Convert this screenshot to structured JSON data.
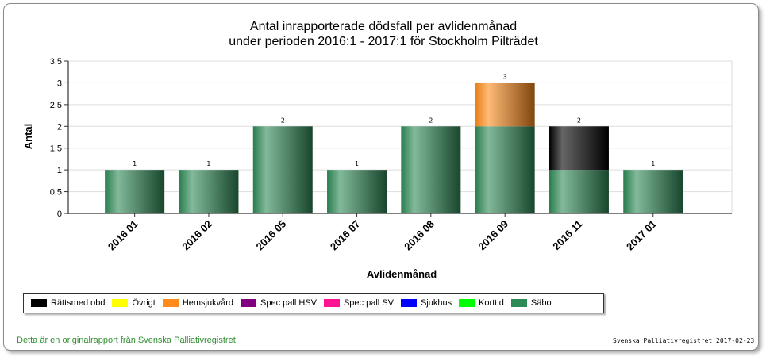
{
  "chart_data": {
    "type": "bar",
    "stacked": true,
    "title": [
      "Antal inrapporterade dödsfall per avlidenmånad",
      "under perioden 2016:1 - 2017:1 för Stockholm Pilträdet"
    ],
    "xlabel": "Avlidenmånad",
    "ylabel": "Antal",
    "ylim": [
      0,
      3.5
    ],
    "yticks": [
      "0",
      "0,5",
      "1",
      "1,5",
      "2",
      "2,5",
      "3",
      "3,5"
    ],
    "categories": [
      "2016 01",
      "2016 02",
      "2016 05",
      "2016 07",
      "2016 08",
      "2016 09",
      "2016 11",
      "2017 01"
    ],
    "totals": [
      "1",
      "1",
      "2",
      "1",
      "2",
      "3",
      "2",
      "1"
    ],
    "grid": true,
    "legend_position": "bottom",
    "series": [
      {
        "name": "Rättsmed obd",
        "color": "#000000",
        "values": [
          0,
          0,
          0,
          0,
          0,
          0,
          1,
          0
        ]
      },
      {
        "name": "Övrigt",
        "color": "#ffff00",
        "values": [
          0,
          0,
          0,
          0,
          0,
          0,
          0,
          0
        ]
      },
      {
        "name": "Hemsjukvård",
        "color": "#ff8c1a",
        "values": [
          0,
          0,
          0,
          0,
          0,
          1,
          0,
          0
        ]
      },
      {
        "name": "Spec pall HSV",
        "color": "#800080",
        "values": [
          0,
          0,
          0,
          0,
          0,
          0,
          0,
          0
        ]
      },
      {
        "name": "Spec pall SV",
        "color": "#ff1493",
        "values": [
          0,
          0,
          0,
          0,
          0,
          0,
          0,
          0
        ]
      },
      {
        "name": "Sjukhus",
        "color": "#0000ff",
        "values": [
          0,
          0,
          0,
          0,
          0,
          0,
          0,
          0
        ]
      },
      {
        "name": "Korttid",
        "color": "#00ff00",
        "values": [
          0,
          0,
          0,
          0,
          0,
          0,
          0,
          0
        ]
      },
      {
        "name": "Säbo",
        "color": "#2e8b57",
        "values": [
          1,
          1,
          2,
          1,
          2,
          2,
          1,
          1
        ]
      }
    ]
  },
  "footer": {
    "left": "Detta är en originalrapport från Svenska Palliativregistret",
    "right": "Svenska Palliativregistret 2017-02-23"
  }
}
